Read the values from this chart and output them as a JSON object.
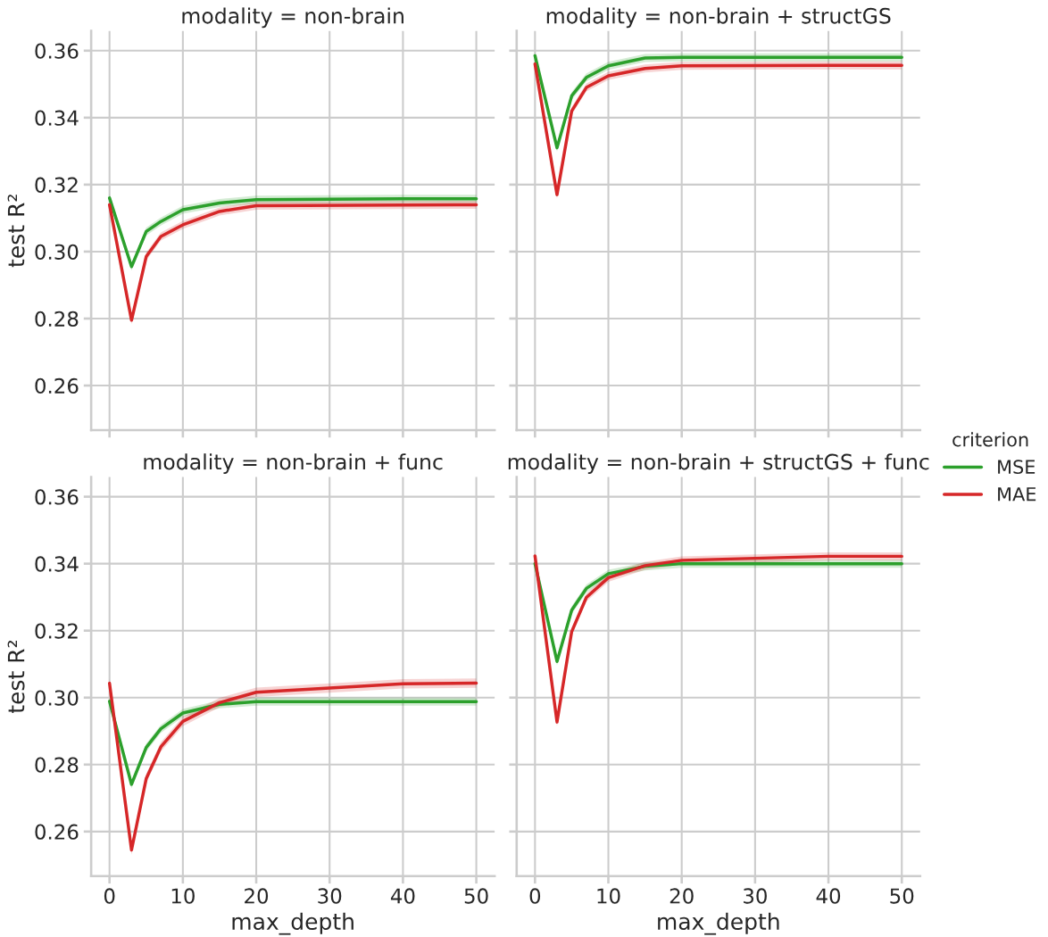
{
  "chart_data": [
    {
      "type": "line",
      "title": "modality = non-brain",
      "ylabel": "test R²",
      "x": [
        0,
        3,
        5,
        7,
        10,
        15,
        20,
        40,
        50
      ],
      "xlim": [
        -2.5,
        52.5
      ],
      "ylim": [
        0.2467,
        0.3659
      ],
      "xticks": [
        0,
        10,
        20,
        30,
        40,
        50
      ],
      "yticks": [
        0.26,
        0.28,
        {
          "value": 0.3,
          "label": "0.30"
        },
        0.32,
        0.34,
        0.36
      ],
      "tick_labels": "y",
      "grid": true,
      "legend": "right",
      "legend_title": "criterion",
      "series": [
        {
          "name": "MSE",
          "color": "#2ca02c",
          "values": [
            0.316,
            0.2955,
            0.306,
            0.309,
            0.3125,
            0.3145,
            0.3155,
            0.3158,
            0.3158
          ],
          "lower": [
            0.3148,
            0.2943,
            0.3048,
            0.3078,
            0.3113,
            0.3133,
            0.3143,
            0.3146,
            0.3146
          ],
          "upper": [
            0.3172,
            0.2967,
            0.3072,
            0.3102,
            0.3137,
            0.3157,
            0.3167,
            0.317,
            0.317
          ]
        },
        {
          "name": "MAE",
          "color": "#d62728",
          "values": [
            0.314,
            0.2795,
            0.2985,
            0.3045,
            0.308,
            0.312,
            0.3137,
            0.3139,
            0.314
          ],
          "lower": [
            0.3128,
            0.2783,
            0.2973,
            0.3033,
            0.3068,
            0.3108,
            0.3125,
            0.3127,
            0.3128
          ],
          "upper": [
            0.3152,
            0.2807,
            0.2997,
            0.3057,
            0.3092,
            0.3132,
            0.3149,
            0.3151,
            0.3152
          ]
        }
      ]
    },
    {
      "type": "line",
      "title": "modality = non-brain + structGS",
      "x": [
        0,
        3,
        5,
        7,
        10,
        15,
        20,
        40,
        50
      ],
      "xlim": [
        -2.5,
        52.5
      ],
      "ylim": [
        0.2467,
        0.3659
      ],
      "xticks": [
        0,
        10,
        20,
        30,
        40,
        50
      ],
      "yticks": [
        0.26,
        0.28,
        0.3,
        0.32,
        0.34,
        0.36
      ],
      "tick_labels": false,
      "grid": true,
      "series": [
        {
          "color": "#2ca02c",
          "values": [
            0.3585,
            0.331,
            0.3465,
            0.352,
            0.3555,
            0.3578,
            0.358,
            0.358,
            0.358
          ],
          "lower": [
            0.3573,
            0.3298,
            0.3453,
            0.3508,
            0.3543,
            0.3566,
            0.3568,
            0.3568,
            0.3568
          ],
          "upper": [
            0.3597,
            0.3322,
            0.3477,
            0.3532,
            0.3567,
            0.359,
            0.3592,
            0.3592,
            0.3592
          ]
        },
        {
          "color": "#d62728",
          "values": [
            0.356,
            0.317,
            0.342,
            0.349,
            0.3525,
            0.3547,
            0.3555,
            0.3556,
            0.3556
          ],
          "lower": [
            0.3548,
            0.3158,
            0.3408,
            0.3478,
            0.3513,
            0.3535,
            0.3543,
            0.3544,
            0.3544
          ],
          "upper": [
            0.3572,
            0.3182,
            0.3432,
            0.3502,
            0.3537,
            0.3559,
            0.3567,
            0.3568,
            0.3568
          ]
        }
      ]
    },
    {
      "type": "line",
      "title": "modality = non-brain + func",
      "xlabel": "max_depth",
      "ylabel": "test R²",
      "x": [
        0,
        3,
        5,
        7,
        10,
        15,
        20,
        40,
        50
      ],
      "xlim": [
        -2.5,
        52.5
      ],
      "ylim": [
        0.2467,
        0.3659
      ],
      "xticks": [
        0,
        10,
        20,
        30,
        40,
        50
      ],
      "yticks": [
        0.26,
        0.28,
        {
          "value": 0.3,
          "label": "0.30"
        },
        0.32,
        0.34,
        0.36
      ],
      "grid": true,
      "series": [
        {
          "color": "#2ca02c",
          "values": [
            0.2989,
            0.2741,
            0.2851,
            0.2907,
            0.2954,
            0.298,
            0.2988,
            0.2988,
            0.2988
          ],
          "lower": [
            0.2977,
            0.2729,
            0.2839,
            0.2895,
            0.2942,
            0.2968,
            0.2976,
            0.2976,
            0.2976
          ],
          "upper": [
            0.3001,
            0.2753,
            0.2863,
            0.2919,
            0.2966,
            0.2992,
            0.3,
            0.3,
            0.3
          ]
        },
        {
          "color": "#d62728",
          "values": [
            0.3043,
            0.2545,
            0.2758,
            0.2853,
            0.2929,
            0.2985,
            0.3016,
            0.3041,
            0.3043
          ],
          "lower": [
            0.3029,
            0.2531,
            0.2744,
            0.2839,
            0.2915,
            0.2971,
            0.3002,
            0.3027,
            0.3029
          ],
          "upper": [
            0.3057,
            0.2559,
            0.2772,
            0.2867,
            0.2943,
            0.2999,
            0.303,
            0.3055,
            0.3057
          ]
        }
      ]
    },
    {
      "type": "line",
      "title": "modality = non-brain + structGS + func",
      "xlabel": "max_depth",
      "x": [
        0,
        3,
        5,
        7,
        10,
        15,
        20,
        40,
        50
      ],
      "xlim": [
        -2.5,
        52.5
      ],
      "ylim": [
        0.2467,
        0.3659
      ],
      "xticks": [
        0,
        10,
        20,
        30,
        40,
        50
      ],
      "yticks": [
        0.26,
        0.28,
        0.3,
        0.32,
        0.34,
        0.36
      ],
      "tick_labels": "x",
      "grid": true,
      "series": [
        {
          "color": "#2ca02c",
          "values": [
            0.34,
            0.3108,
            0.3261,
            0.3326,
            0.337,
            0.3392,
            0.34,
            0.34,
            0.34
          ],
          "lower": [
            0.3388,
            0.3096,
            0.3249,
            0.3314,
            0.3358,
            0.338,
            0.3388,
            0.3388,
            0.3388
          ],
          "upper": [
            0.3412,
            0.312,
            0.3273,
            0.3338,
            0.3382,
            0.3404,
            0.3412,
            0.3412,
            0.3412
          ]
        },
        {
          "color": "#d62728",
          "values": [
            0.3423,
            0.2927,
            0.3197,
            0.3299,
            0.3358,
            0.3394,
            0.341,
            0.3422,
            0.3422
          ],
          "lower": [
            0.3411,
            0.2915,
            0.3185,
            0.3287,
            0.3346,
            0.3382,
            0.3398,
            0.341,
            0.341
          ],
          "upper": [
            0.3435,
            0.2939,
            0.3209,
            0.3311,
            0.337,
            0.3406,
            0.3422,
            0.3434,
            0.3434
          ]
        }
      ]
    }
  ]
}
